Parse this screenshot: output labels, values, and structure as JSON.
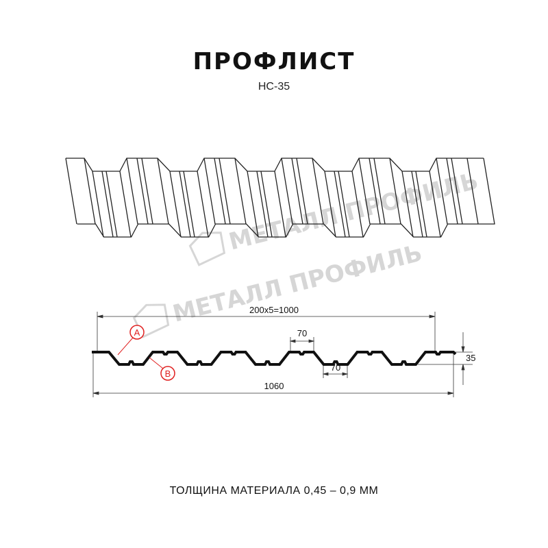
{
  "header": {
    "title": "ПРОФЛИСТ",
    "model": "НС-35"
  },
  "watermark": {
    "logo_text": "МЕТАЛЛ ПРОФИЛЬ"
  },
  "section": {
    "pitch_dim": "200x5=1000",
    "width_dim": "1060",
    "height_dim": "35",
    "crest_dim": "70",
    "trough_dim": "70",
    "marker_a": "A",
    "marker_b": "B",
    "marker_color": "#e02020"
  },
  "footer": {
    "thickness": "ТОЛЩИНА МАТЕРИАЛА 0,45 – 0,9 ММ"
  }
}
